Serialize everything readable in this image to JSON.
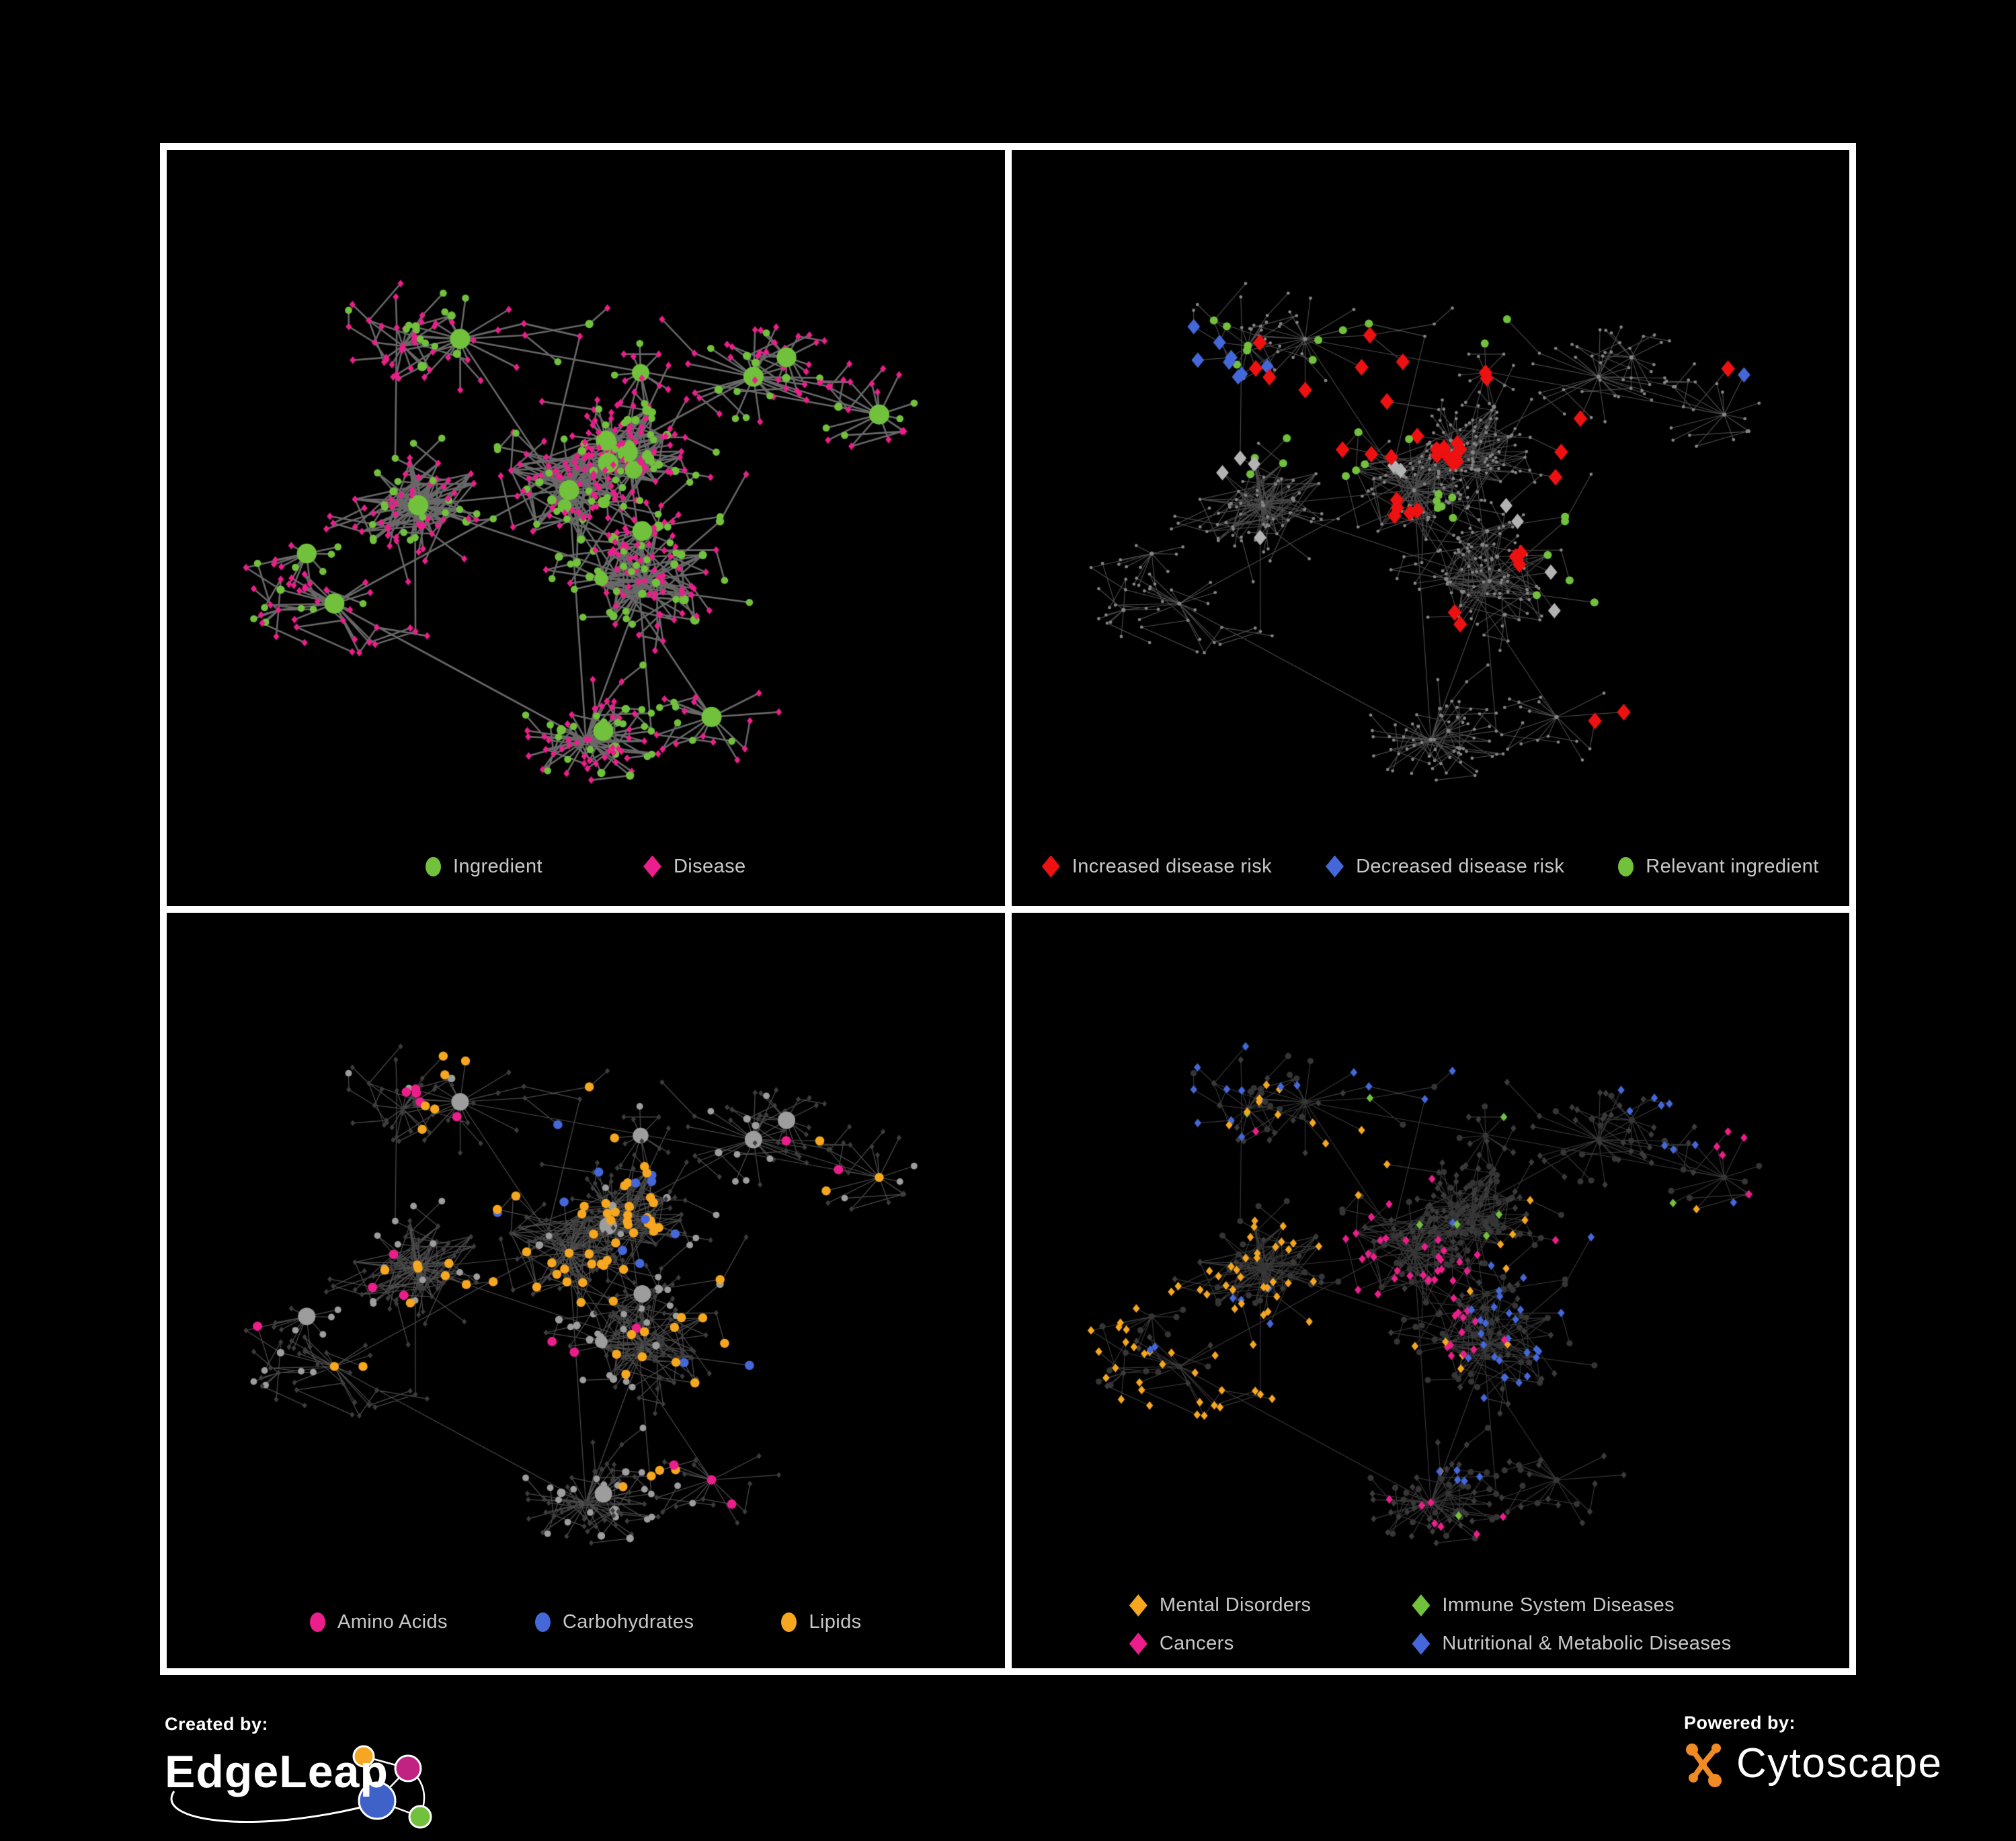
{
  "page": {
    "background": "#000000",
    "frame_color": "#FFFFFF",
    "legend_text_color": "#C8C8C8"
  },
  "network": {
    "description": "Ingredient–disease association network (same layout reused in all four panels)",
    "node_count": 680,
    "layout_seed": 20,
    "type_seed": 500,
    "circle_share": 0.32,
    "hubs": [
      [
        0.3,
        0.47,
        34
      ],
      [
        0.48,
        0.45,
        30
      ],
      [
        0.55,
        0.4,
        24
      ],
      [
        0.57,
        0.57,
        26
      ],
      [
        0.5,
        0.78,
        20
      ],
      [
        0.2,
        0.6,
        8
      ],
      [
        0.7,
        0.3,
        6
      ],
      [
        0.85,
        0.35,
        8
      ],
      [
        0.35,
        0.25,
        8
      ],
      [
        0.65,
        0.75,
        6
      ]
    ]
  },
  "panels": [
    {
      "id": "ingredient-disease",
      "legend": [
        {
          "label": "Ingredient",
          "shape": "circle",
          "color": "#72C13C"
        },
        {
          "label": "Disease",
          "shape": "diamond",
          "color": "#EC1E8B"
        }
      ],
      "style": {
        "mode": "typed",
        "edge": "rgba(115,115,115,0.9)",
        "edgeW": 2.6,
        "circle": {
          "color": "#72C13C",
          "base": 4.5,
          "perDeg": 0.85,
          "cap": 15
        },
        "diamond": {
          "color": "#EC1E8B",
          "size": 5.6
        },
        "hl_seed": 201
      }
    },
    {
      "id": "disease-risk",
      "legend": [
        {
          "label": "Increased disease risk",
          "shape": "diamond",
          "color": "#EE1111"
        },
        {
          "label": "Decreased disease risk",
          "shape": "diamond",
          "color": "#4468D9"
        },
        {
          "label": "Relevant ingredient",
          "shape": "circle",
          "color": "#72C13C"
        }
      ],
      "style": {
        "mode": "plain",
        "edge": "rgba(105,105,105,0.7)",
        "edgeW": 1.15,
        "dot": {
          "color": "#858585",
          "r": 2.4
        },
        "hl_seed": 202,
        "highlights": [
          {
            "target": "any",
            "shape": "diamond",
            "color": "#EE1111",
            "size": 12.5,
            "clusters": [
              [
                0.42,
                0.33,
                9,
                0.07
              ],
              [
                0.52,
                0.4,
                9,
                0.06
              ],
              [
                0.47,
                0.47,
                5,
                0.05
              ],
              [
                0.3,
                0.28,
                3,
                0.05
              ],
              [
                0.56,
                0.3,
                2,
                0.04
              ],
              [
                0.68,
                0.41,
                3,
                0.05
              ],
              [
                0.6,
                0.55,
                3,
                0.04
              ],
              [
                0.78,
                0.7,
                2,
                0.05
              ],
              [
                0.9,
                0.25,
                1,
                0.03
              ],
              [
                0.52,
                0.62,
                2,
                0.04
              ]
            ]
          },
          {
            "target": "any",
            "shape": "diamond",
            "color": "#4468D9",
            "size": 11.5,
            "clusters": [
              [
                0.17,
                0.33,
                6,
                0.05
              ],
              [
                0.3,
                0.33,
                2,
                0.04
              ],
              [
                0.89,
                0.26,
                2,
                0.03
              ]
            ]
          },
          {
            "target": "any",
            "shape": "diamond",
            "color": "#B3B3B3",
            "size": 11.5,
            "clusters": [
              [
                0.23,
                0.37,
                3,
                0.06
              ],
              [
                0.46,
                0.42,
                2,
                0.05
              ],
              [
                0.6,
                0.48,
                2,
                0.05
              ],
              [
                0.66,
                0.58,
                2,
                0.04
              ],
              [
                0.83,
                0.73,
                1,
                0.03
              ],
              [
                0.3,
                0.52,
                1,
                0.03
              ]
            ]
          },
          {
            "target": "any",
            "shape": "circle",
            "color": "#72C13C",
            "size": 6,
            "clusters": [
              [
                0.4,
                0.33,
                10,
                0.08
              ],
              [
                0.2,
                0.32,
                5,
                0.06
              ],
              [
                0.52,
                0.47,
                6,
                0.07
              ],
              [
                0.64,
                0.5,
                3,
                0.06
              ],
              [
                0.7,
                0.62,
                3,
                0.04
              ],
              [
                0.3,
                0.42,
                3,
                0.06
              ],
              [
                0.12,
                0.3,
                2,
                0.04
              ],
              [
                0.56,
                0.22,
                2,
                0.05
              ]
            ]
          }
        ]
      }
    },
    {
      "id": "nutrient-classes",
      "legend": [
        {
          "label": "Amino Acids",
          "shape": "circle",
          "color": "#EC1E8B"
        },
        {
          "label": "Carbohydrates",
          "shape": "circle",
          "color": "#4468D9"
        },
        {
          "label": "Lipids",
          "shape": "circle",
          "color": "#F6A71F"
        }
      ],
      "style": {
        "mode": "typed",
        "edge": "rgba(190,190,190,0.40)",
        "edgeW": 1.25,
        "circle": {
          "color": "#9D9D9D",
          "base": 4.2,
          "perDeg": 0.75,
          "cap": 13
        },
        "diamond": {
          "color": "#3D3D3D",
          "size": 4.4
        },
        "hl_seed": 203,
        "highlights": [
          {
            "target": "c",
            "shape": "circle",
            "color": "#F6A71F",
            "size": 6.8,
            "scatter": 6,
            "clusters": [
              [
                0.55,
                0.4,
                26,
                0.05
              ],
              [
                0.48,
                0.45,
                12,
                0.06
              ],
              [
                0.42,
                0.28,
                10,
                0.09
              ],
              [
                0.35,
                0.52,
                8,
                0.07
              ],
              [
                0.57,
                0.57,
                6,
                0.04
              ],
              [
                0.68,
                0.57,
                5,
                0.05
              ],
              [
                0.3,
                0.64,
                4,
                0.05
              ],
              [
                0.52,
                0.1,
                2,
                0.04
              ],
              [
                0.85,
                0.42,
                2,
                0.05
              ],
              [
                0.6,
                0.68,
                3,
                0.05
              ]
            ]
          },
          {
            "target": "c",
            "shape": "circle",
            "color": "#4468D9",
            "size": 6.8,
            "clusters": [
              [
                0.55,
                0.4,
                9,
                0.05
              ],
              [
                0.42,
                0.3,
                2,
                0.05
              ],
              [
                0.68,
                0.6,
                2,
                0.03
              ],
              [
                0.08,
                0.27,
                1,
                0.02
              ],
              [
                0.3,
                0.08,
                1,
                0.02
              ]
            ]
          },
          {
            "target": "c",
            "shape": "circle",
            "color": "#EC1E8B",
            "size": 7,
            "scatter": 2,
            "clusters": [
              [
                0.2,
                0.2,
                3,
                0.06
              ],
              [
                0.3,
                0.28,
                2,
                0.04
              ],
              [
                0.25,
                0.47,
                2,
                0.05
              ],
              [
                0.3,
                0.7,
                3,
                0.06
              ],
              [
                0.45,
                0.62,
                2,
                0.04
              ],
              [
                0.7,
                0.65,
                4,
                0.06
              ],
              [
                0.8,
                0.28,
                2,
                0.04
              ],
              [
                0.95,
                0.28,
                1,
                0.02
              ],
              [
                0.67,
                0.04,
                1,
                0.02
              ],
              [
                0.12,
                0.5,
                1,
                0.02
              ]
            ]
          }
        ]
      }
    },
    {
      "id": "disease-classes",
      "legend": [
        {
          "label": "Mental Disorders",
          "shape": "diamond",
          "color": "#F6A71F"
        },
        {
          "label": "Immune System Diseases",
          "shape": "diamond",
          "color": "#72C13C"
        },
        {
          "label": "Cancers",
          "shape": "diamond",
          "color": "#EC1E8B"
        },
        {
          "label": "Nutritional & Metabolic Diseases",
          "shape": "diamond",
          "color": "#4468D9"
        }
      ],
      "style": {
        "mode": "typed",
        "edge": "rgba(160,160,160,0.35)",
        "edgeW": 1.15,
        "circle": {
          "color": "#353535",
          "r": 4.6
        },
        "diamond": {
          "color": "#3B3B3B",
          "size": 5.2
        },
        "hl_seed": 204,
        "highlights": [
          {
            "target": "d",
            "shape": "diamond",
            "color": "#F6A71F",
            "size": 6.4,
            "scatter": 6,
            "clusters": [
              [
                0.25,
                0.55,
                60,
                0.075
              ],
              [
                0.3,
                0.25,
                6,
                0.06
              ],
              [
                0.4,
                0.3,
                5,
                0.05
              ],
              [
                0.62,
                0.45,
                4,
                0.04
              ],
              [
                0.5,
                0.62,
                4,
                0.05
              ],
              [
                0.3,
                0.72,
                4,
                0.05
              ],
              [
                0.15,
                0.8,
                3,
                0.04
              ],
              [
                0.55,
                0.13,
                2,
                0.03
              ]
            ]
          },
          {
            "target": "d",
            "shape": "diamond",
            "color": "#EC1E8B",
            "size": 6.4,
            "scatter": 5,
            "clusters": [
              [
                0.45,
                0.55,
                26,
                0.06
              ],
              [
                0.52,
                0.47,
                10,
                0.05
              ],
              [
                0.4,
                0.4,
                6,
                0.06
              ],
              [
                0.88,
                0.3,
                5,
                0.04
              ],
              [
                0.5,
                0.8,
                4,
                0.05
              ],
              [
                0.15,
                0.88,
                3,
                0.04
              ],
              [
                0.6,
                0.85,
                2,
                0.04
              ]
            ]
          },
          {
            "target": "d",
            "shape": "diamond",
            "color": "#4468D9",
            "size": 6.4,
            "scatter": 8,
            "clusters": [
              [
                0.57,
                0.58,
                18,
                0.045
              ],
              [
                0.65,
                0.5,
                8,
                0.04
              ],
              [
                0.82,
                0.22,
                8,
                0.05
              ],
              [
                0.3,
                0.12,
                6,
                0.07
              ],
              [
                0.45,
                0.15,
                4,
                0.05
              ],
              [
                0.25,
                0.62,
                4,
                0.05
              ],
              [
                0.55,
                0.75,
                4,
                0.06
              ],
              [
                0.78,
                0.6,
                4,
                0.04
              ],
              [
                0.9,
                0.45,
                2,
                0.03
              ],
              [
                0.2,
                0.3,
                4,
                0.06
              ]
            ]
          },
          {
            "target": "d",
            "shape": "diamond",
            "color": "#72C13C",
            "size": 6.4,
            "scatter": 9,
            "clusters": []
          }
        ]
      }
    }
  ],
  "footer": {
    "created_by_label": "Created by:",
    "created_brand": "EdgeLeap",
    "powered_by_label": "Powered by:",
    "powered_brand": "Cytoscape",
    "edgeleap_node_colors": [
      "#F5A623",
      "#C02381",
      "#3F62C8",
      "#72C13C"
    ],
    "cytoscape_orange": "#F08A24"
  }
}
